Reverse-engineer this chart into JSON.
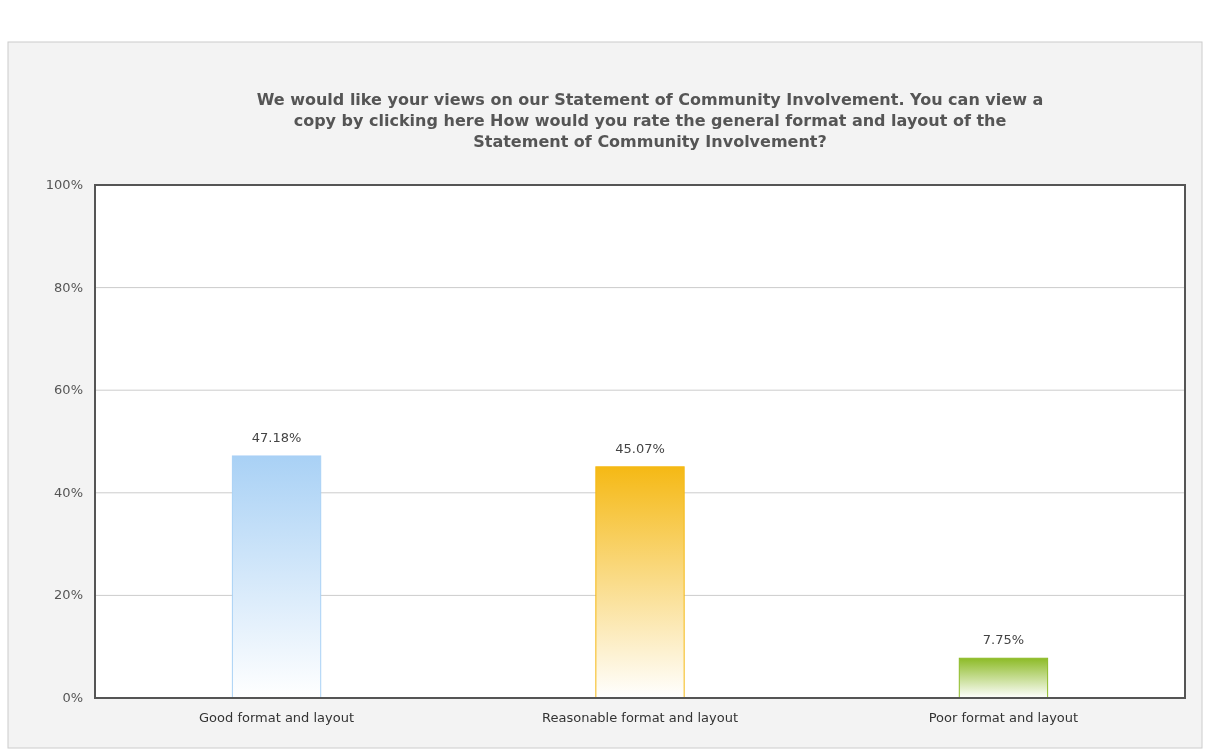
{
  "chart_data": {
    "type": "bar",
    "title": "We would like your views on our Statement of Community Involvement. You can view a copy by clicking here How would you rate the general format and layout of the Statement of Community Involvement?",
    "categories": [
      "Good format and layout",
      "Reasonable format and layout",
      "Poor format and layout"
    ],
    "values": [
      47.18,
      45.07,
      7.75
    ],
    "colors": [
      "#a9d1f5",
      "#f5b915",
      "#8dbb27"
    ],
    "value_labels": [
      "47.18%",
      "45.07%",
      "7.75%"
    ],
    "ylim": [
      0,
      100
    ],
    "yticks": [
      {
        "value": 0,
        "label": "0%"
      },
      {
        "value": 20,
        "label": "20%"
      },
      {
        "value": 40,
        "label": "40%"
      },
      {
        "value": 60,
        "label": "60%"
      },
      {
        "value": 80,
        "label": "80%"
      },
      {
        "value": 100,
        "label": "100%"
      }
    ],
    "grid": "y"
  }
}
